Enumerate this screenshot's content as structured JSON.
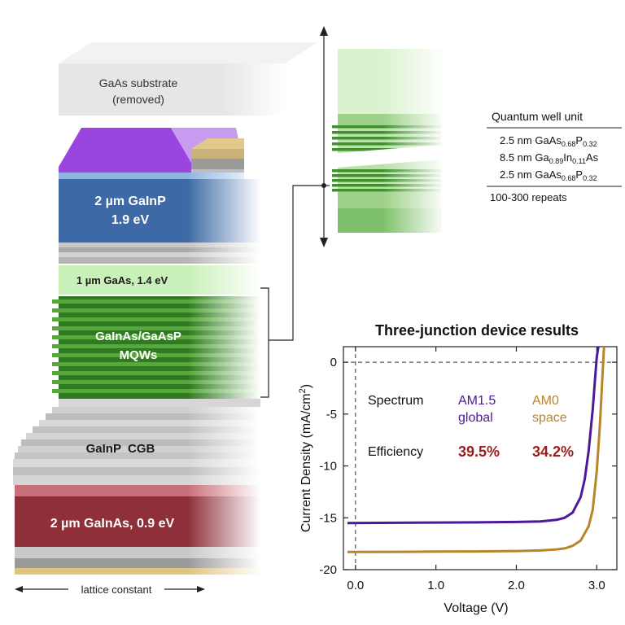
{
  "stack": {
    "substrate_line1": "GaAs substrate",
    "substrate_line2": "(removed)",
    "top_cell_line1": "2 µm GaInP",
    "top_cell_line2": "1.9 eV",
    "middle_cell": "1 µm GaAs, 1.4 eV",
    "mqw_line1": "GaInAs/GaAsP",
    "mqw_line2": "MQWs",
    "cgb": "GaInP  CGB",
    "bottom_cell": "2 µm GaInAs, 0.9 eV",
    "lattice": "lattice constant"
  },
  "quantum_well": {
    "title": "Quantum well unit",
    "layers": [
      {
        "thickness": "2.5 nm",
        "e1": "GaAs",
        "s1": "0.68",
        "e2": "P",
        "s2": "0.32"
      },
      {
        "thickness": "8.5 nm",
        "e1": "Ga",
        "s1": "0.89",
        "e2": "In",
        "s2": "0.11",
        "e3": "As"
      },
      {
        "thickness": "2.5 nm",
        "e1": "GaAs",
        "s1": "0.68",
        "e2": "P",
        "s2": "0.32"
      }
    ],
    "repeats": "100-300 repeats"
  },
  "colors": {
    "top_cell": "#3d6aa6",
    "middle_cell": "#c8f0b8",
    "mqw": "#3f8f2a",
    "bottom_cell": "#8e2f39",
    "contact": "#9b45e0",
    "am15": "#4a1a9a",
    "am0": "#b8862a",
    "efficiency": "#9a1c1c"
  },
  "chart_data": {
    "type": "line",
    "title": "Three-junction device results",
    "xlabel": "Voltage (V)",
    "ylabel_main": "Current Density (mA/cm",
    "ylabel_sup": "2",
    "ylabel_end": ")",
    "xlim": [
      -0.15,
      3.25
    ],
    "ylim": [
      -20,
      1.5
    ],
    "x_ticks": [
      0,
      1,
      2,
      3
    ],
    "x_tick_labels": [
      "0.0",
      "1.0",
      "2.0",
      "3.0"
    ],
    "y_ticks": [
      0,
      -5,
      -10,
      -15,
      -20
    ],
    "y_tick_labels": [
      "0",
      "-5",
      "-10",
      "-15",
      "-20"
    ],
    "spectrum_label": "Spectrum",
    "efficiency_label": "Efficiency",
    "series": [
      {
        "name_line1": "AM1.5",
        "name_line2": "global",
        "efficiency": "39.5%",
        "color": "#4a1a9a",
        "x": [
          -0.1,
          0.5,
          1.0,
          1.5,
          2.0,
          2.3,
          2.5,
          2.6,
          2.7,
          2.8,
          2.85,
          2.9,
          2.95,
          2.98,
          3.0,
          3.02
        ],
        "y": [
          -15.5,
          -15.48,
          -15.46,
          -15.44,
          -15.4,
          -15.35,
          -15.2,
          -15.0,
          -14.5,
          -13.0,
          -11.3,
          -8.5,
          -4.5,
          -1.5,
          0.5,
          1.5
        ]
      },
      {
        "name_line1": "AM0",
        "name_line2": "space",
        "efficiency": "34.2%",
        "color": "#b8862a",
        "x": [
          -0.1,
          0.5,
          1.0,
          1.5,
          2.0,
          2.3,
          2.5,
          2.6,
          2.7,
          2.8,
          2.9,
          2.95,
          3.0,
          3.04,
          3.07,
          3.09
        ],
        "y": [
          -18.3,
          -18.28,
          -18.26,
          -18.24,
          -18.2,
          -18.15,
          -18.05,
          -17.95,
          -17.7,
          -17.2,
          -15.8,
          -14.2,
          -10.5,
          -6.0,
          -1.5,
          1.5
        ]
      }
    ]
  }
}
